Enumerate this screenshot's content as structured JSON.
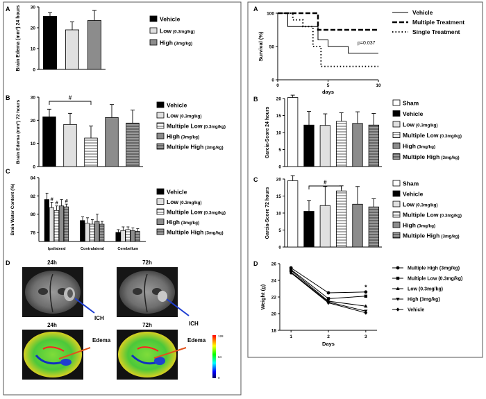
{
  "chart_data": [
    {
      "panel": "A",
      "type": "bar",
      "ylabel": "Brain Edema (mm³) 24 hours",
      "ylim": [
        0,
        30
      ],
      "yticks": [
        "0",
        "10",
        "20",
        "30"
      ],
      "series": [
        {
          "name": "Vehicle",
          "value": 25.5,
          "error": 1.8
        },
        {
          "name": "Low",
          "dose": "(0.3mg/kg)",
          "value": 19,
          "error": 3.8
        },
        {
          "name": "High",
          "dose": "(3mg/kg)",
          "value": 23.5,
          "error": 4.8
        }
      ]
    },
    {
      "panel": "B",
      "type": "bar",
      "ylabel": "Brain Edema (mm³) 72 hours",
      "ylim": [
        0,
        30
      ],
      "yticks": [
        "0",
        "10",
        "20",
        "30"
      ],
      "sig": "#",
      "series": [
        {
          "name": "Vehicle",
          "value": 21.5,
          "error": 3.3
        },
        {
          "name": "Low",
          "dose": "(0.3mg/kg)",
          "value": 18.2,
          "error": 4.8
        },
        {
          "name": "Multiple Low",
          "dose": "(0.3mg/kg)",
          "value": 12.3,
          "error": 5.2
        },
        {
          "name": "High",
          "dose": "(3mg/kg)",
          "value": 21.2,
          "error": 5.6
        },
        {
          "name": "Multiple High",
          "dose": "(3mg/kg)",
          "value": 18.8,
          "error": 5.6
        }
      ]
    },
    {
      "panel": "C",
      "type": "bar",
      "ylabel": "Brain Water Content (%)",
      "ylim": [
        77,
        84
      ],
      "yticks": [
        "78",
        "80",
        "82",
        "84"
      ],
      "categories": [
        "Ipsilateral",
        "Contralateral",
        "Cerebellum"
      ],
      "sig_marks": [
        "#",
        "#",
        "#"
      ],
      "series": [
        {
          "name": "Vehicle",
          "values": [
            81.6,
            79.3,
            78.0
          ],
          "errors": [
            0.7,
            0.4,
            0.3
          ]
        },
        {
          "name": "Low",
          "dose": "(0.3mg/kg)",
          "values": [
            80.7,
            79.0,
            78.2
          ],
          "errors": [
            0.6,
            0.6,
            0.4
          ]
        },
        {
          "name": "Multiple Low",
          "dose": "(0.3mg/kg)",
          "values": [
            80.4,
            78.9,
            78.3
          ],
          "errors": [
            0.5,
            0.5,
            0.3
          ]
        },
        {
          "name": "High",
          "dose": "(3mg/kg)",
          "values": [
            80.9,
            79.2,
            78.2
          ],
          "errors": [
            0.7,
            0.8,
            0.3
          ]
        },
        {
          "name": "Multiple High",
          "dose": "(3mg/kg)",
          "values": [
            80.8,
            78.9,
            78.1
          ],
          "errors": [
            0.3,
            0.3,
            0.3
          ]
        }
      ]
    },
    {
      "panel": "A",
      "type": "line",
      "subtype": "survival",
      "ylabel": "Survival (%)",
      "xlabel": "days",
      "xlim": [
        0,
        10
      ],
      "ylim": [
        0,
        100
      ],
      "xticks": [
        "0",
        "5",
        "10"
      ],
      "yticks": [
        "0",
        "50",
        "100"
      ],
      "annotation": "p=0.037",
      "series": [
        {
          "name": "Vehicle",
          "x": [
            0,
            1,
            1,
            4,
            4,
            5,
            5,
            7,
            7,
            10
          ],
          "y": [
            100,
            100,
            80,
            80,
            60,
            60,
            50,
            50,
            40,
            40
          ]
        },
        {
          "name": "Multiple Treatment",
          "x": [
            0,
            4,
            4,
            10
          ],
          "y": [
            100,
            100,
            75,
            75
          ]
        },
        {
          "name": "Single Treatment",
          "x": [
            0,
            1.5,
            1.5,
            2.5,
            2.5,
            3.5,
            3.5,
            4.3,
            4.3,
            10
          ],
          "y": [
            100,
            100,
            90,
            90,
            80,
            80,
            50,
            50,
            20,
            20
          ]
        }
      ]
    },
    {
      "panel": "B",
      "type": "bar",
      "ylabel": "Garcia-Score 24 hours",
      "ylim": [
        0,
        20
      ],
      "yticks": [
        "0",
        "5",
        "10",
        "15",
        "20"
      ],
      "series": [
        {
          "name": "Sham",
          "value": 20.3,
          "error": 0.7
        },
        {
          "name": "Vehicle",
          "value": 12.2,
          "error": 4.0
        },
        {
          "name": "Low",
          "dose": "(0.3mg/kg)",
          "value": 12.1,
          "error": 3.4
        },
        {
          "name": "Multiple Low",
          "dose": "(0.3mg/kg)",
          "value": 13.3,
          "error": 2.5
        },
        {
          "name": "High",
          "dose": "(3mg/kg)",
          "value": 12.7,
          "error": 3.4
        },
        {
          "name": "Multiple High",
          "dose": "(3mg/kg)",
          "value": 12.2,
          "error": 3.4
        }
      ]
    },
    {
      "panel": "C",
      "type": "bar",
      "ylabel": "Garcia-Score 72 hours",
      "ylim": [
        0,
        20
      ],
      "yticks": [
        "0",
        "5",
        "10",
        "15",
        "20"
      ],
      "sig": "#",
      "series": [
        {
          "name": "Sham",
          "value": 19.5,
          "error": 1.5
        },
        {
          "name": "Vehicle",
          "value": 10.5,
          "error": 3.2
        },
        {
          "name": "Low",
          "dose": "(0.3mg/kg)",
          "value": 12.2,
          "error": 5.6
        },
        {
          "name": "Multiple Low",
          "dose": "(0.3mg/kg)",
          "value": 16.5,
          "error": 1.5
        },
        {
          "name": "High",
          "dose": "(3mg/kg)",
          "value": 12.6,
          "error": 5.2
        },
        {
          "name": "Multiple High",
          "dose": "(3mg/kg)",
          "value": 11.8,
          "error": 2.4
        }
      ]
    },
    {
      "panel": "D",
      "type": "line",
      "ylabel": "Weight (g)",
      "xlabel": "Days",
      "xlim": [
        0.7,
        3.3
      ],
      "ylim": [
        18,
        26
      ],
      "xticks": [
        "1",
        "2",
        "3"
      ],
      "yticks": [
        "18",
        "20",
        "22",
        "24",
        "26"
      ],
      "x": [
        1,
        2,
        3
      ],
      "annotation": "*",
      "series": [
        {
          "name": "Multiple High (3mg/kg)",
          "marker": "circle",
          "values": [
            25.5,
            22.5,
            22.6
          ]
        },
        {
          "name": "Multiple Low (0.3mg/kg)",
          "marker": "square",
          "values": [
            25.3,
            21.8,
            22.1
          ]
        },
        {
          "name": "Low (0.3mg/kg)",
          "marker": "triangle",
          "values": [
            25.2,
            21.5,
            20.9
          ]
        },
        {
          "name": "High (3mg/kg)",
          "marker": "triangle-down",
          "values": [
            25.0,
            21.4,
            20.3
          ]
        },
        {
          "name": "Vehicle",
          "marker": "diamond",
          "values": [
            24.9,
            21.3,
            20.1
          ]
        }
      ]
    }
  ],
  "panel_d_mri": {
    "panel": "D",
    "time_top_left": "24h",
    "time_top_right": "72h",
    "time_bottom_left": "24h",
    "time_bottom_right": "72h",
    "ich_label": "ICH",
    "edema_label": "Edema",
    "colorbar_ticks": [
      "128",
      "64",
      "0"
    ]
  },
  "colors": {
    "frame": "#555555",
    "black": "#000000",
    "light": "#e0e0e0",
    "mid": "#8c8c8c",
    "dark": "#5a5a5a",
    "ichline": "#1f3fd1",
    "edemaline": "#e2521c"
  }
}
